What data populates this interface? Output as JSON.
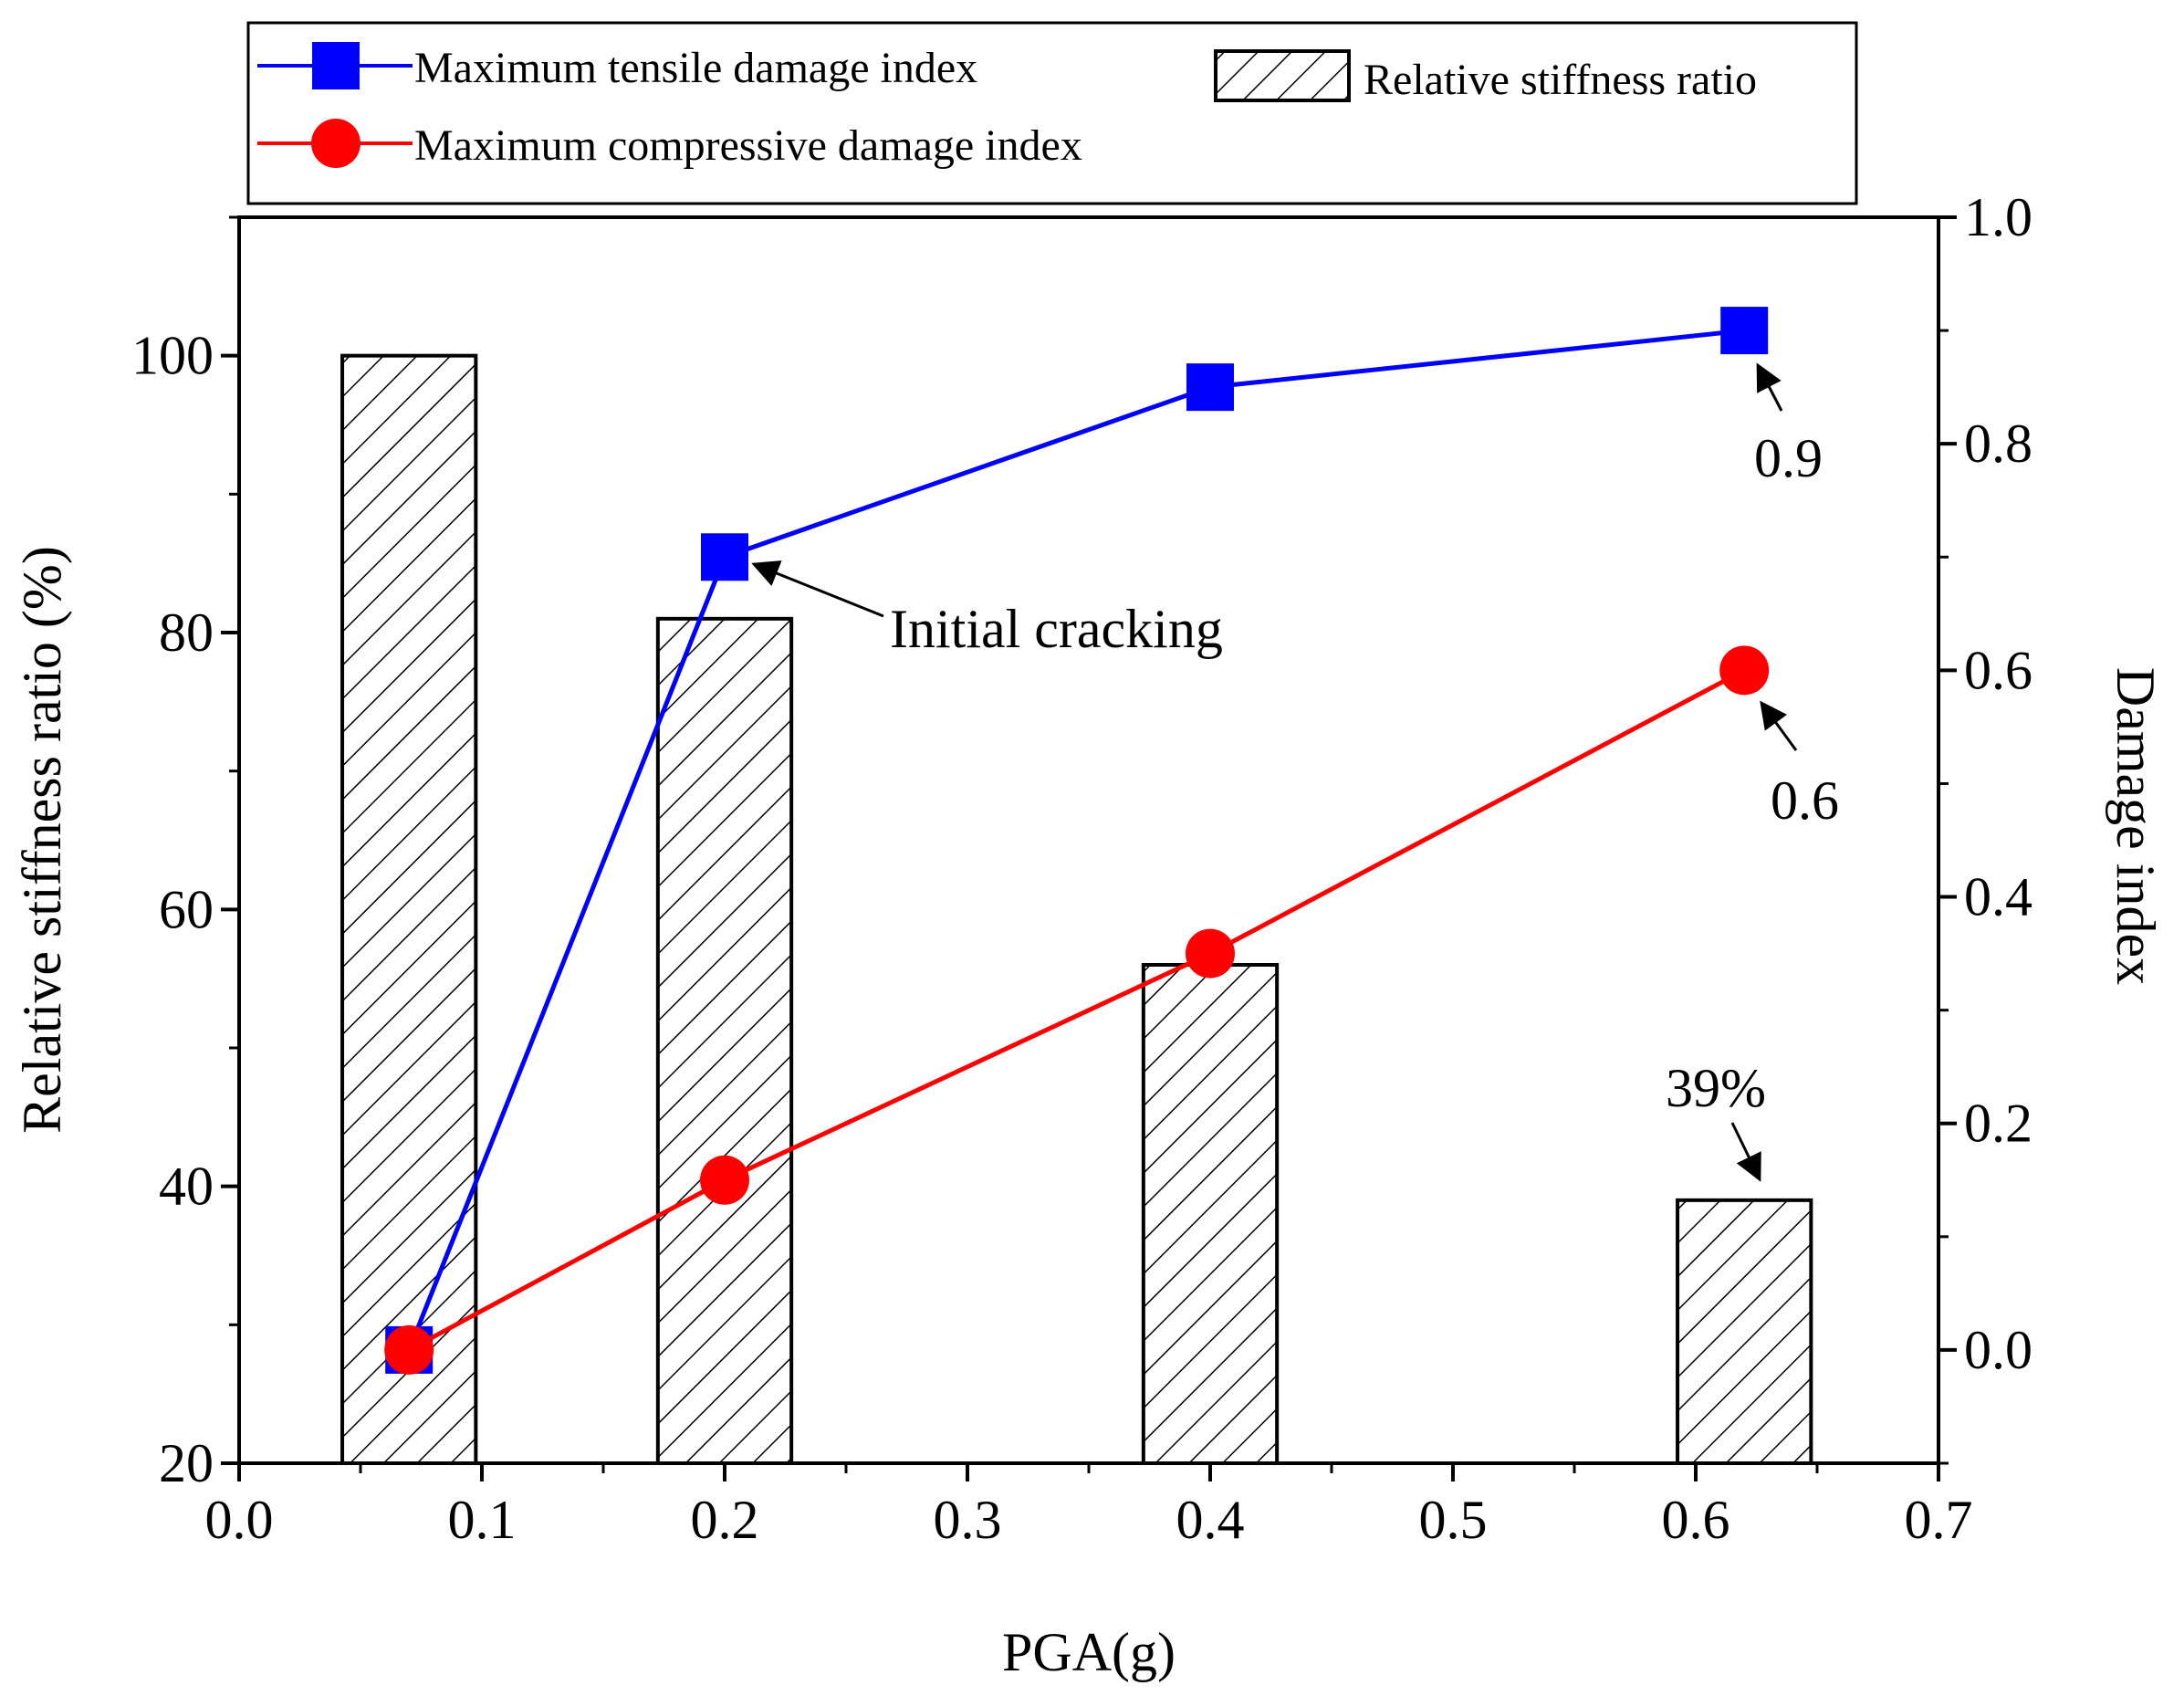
{
  "chart_data": {
    "type": "bar+line",
    "xlabel": "PGA(g)",
    "ylabel_left": "Relative stiffness ratio (%)",
    "ylabel_right": "Damage index",
    "xlim": [
      0.0,
      0.7
    ],
    "ylim_left": [
      20,
      110
    ],
    "ylim_right": [
      -0.1,
      1.0
    ],
    "x_ticks": [
      "0.0",
      "0.1",
      "0.2",
      "0.3",
      "0.4",
      "0.5",
      "0.6",
      "0.7"
    ],
    "y_ticks_left": [
      "20",
      "40",
      "60",
      "80",
      "100"
    ],
    "y_ticks_right": [
      "0.0",
      "0.2",
      "0.4",
      "0.6",
      "0.8",
      "1.0"
    ],
    "bar_width": 0.055,
    "bars": {
      "name": "Relative stiffness ratio",
      "x": [
        0.07,
        0.2,
        0.4,
        0.62
      ],
      "values": [
        100,
        81,
        56,
        39
      ]
    },
    "series": [
      {
        "name": "Maximum tensile damage index",
        "color": "#0000ff",
        "marker": "square",
        "x": [
          0.07,
          0.2,
          0.4,
          0.62
        ],
        "values": [
          0.0,
          0.7,
          0.85,
          0.9
        ]
      },
      {
        "name": "Maximum compressive damage index",
        "color": "#ff0000",
        "marker": "circle",
        "x": [
          0.07,
          0.2,
          0.4,
          0.62
        ],
        "values": [
          0.0,
          0.15,
          0.35,
          0.6
        ]
      }
    ],
    "annotations": [
      {
        "text": "Initial cracking",
        "x": 0.2,
        "value": 0.7,
        "axis": "right"
      },
      {
        "text": "0.9",
        "x": 0.62,
        "value": 0.9,
        "axis": "right"
      },
      {
        "text": "0.6",
        "x": 0.62,
        "value": 0.6,
        "axis": "right"
      },
      {
        "text": "39%",
        "x": 0.62,
        "value": 39,
        "axis": "left"
      }
    ],
    "legend": {
      "position": "top",
      "entries": [
        "Maximum tensile damage index",
        "Maximum compressive damage index",
        "Relative stiffness ratio"
      ]
    }
  }
}
